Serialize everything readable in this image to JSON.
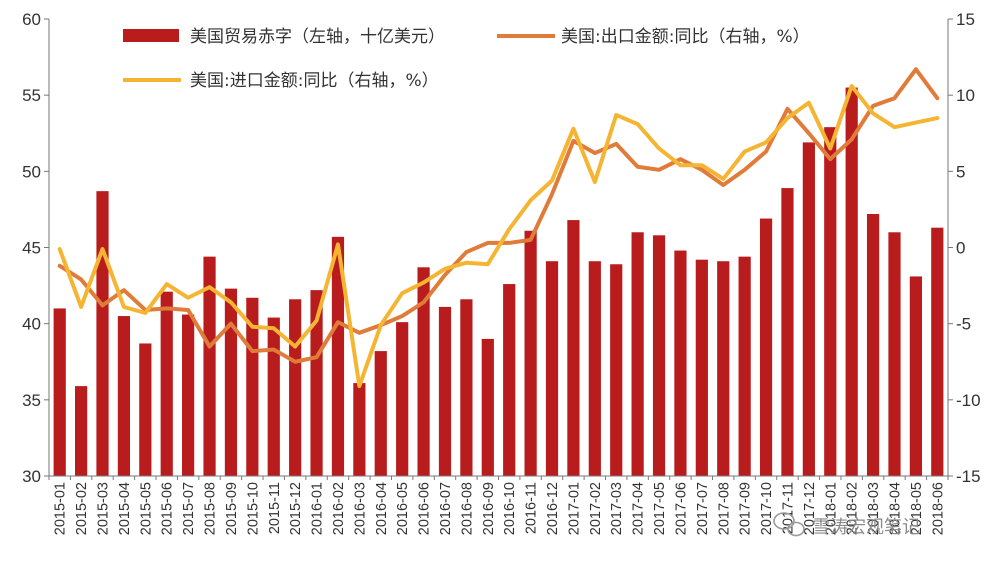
{
  "chart_data": {
    "type": "bar+line",
    "categories": [
      "2015-01",
      "2015-02",
      "2015-03",
      "2015-04",
      "2015-05",
      "2015-06",
      "2015-07",
      "2015-08",
      "2015-09",
      "2015-10",
      "2015-11",
      "2015-12",
      "2016-01",
      "2016-02",
      "2016-03",
      "2016-04",
      "2016-05",
      "2016-06",
      "2016-07",
      "2016-08",
      "2016-09",
      "2016-10",
      "2016-11",
      "2016-12",
      "2017-01",
      "2017-02",
      "2017-03",
      "2017-04",
      "2017-05",
      "2017-06",
      "2017-07",
      "2017-08",
      "2017-09",
      "2017-10",
      "2017-11",
      "2017-12",
      "2018-01",
      "2018-02",
      "2018-03",
      "2018-04",
      "2018-05",
      "2018-06"
    ],
    "y_left": {
      "min": 30,
      "max": 60,
      "step": 5,
      "ticks": [
        "30",
        "35",
        "40",
        "45",
        "50",
        "55",
        "60"
      ]
    },
    "y_right": {
      "min": -15,
      "max": 15,
      "step": 5,
      "ticks": [
        "-15",
        "-10",
        "-5",
        "0",
        "5",
        "10",
        "15"
      ]
    },
    "series": [
      {
        "name": "美国贸易赤字（左轴，十亿美元）",
        "type": "bar",
        "axis": "left",
        "color": "#b81c1c",
        "values": [
          41.0,
          35.9,
          48.7,
          40.5,
          38.7,
          42.1,
          40.6,
          44.4,
          42.3,
          41.7,
          40.4,
          41.6,
          42.2,
          45.7,
          36.1,
          38.2,
          40.1,
          43.7,
          41.1,
          41.6,
          39.0,
          42.6,
          46.1,
          44.1,
          46.8,
          44.1,
          43.9,
          46.0,
          45.8,
          44.8,
          44.2,
          44.1,
          44.4,
          46.9,
          48.9,
          51.9,
          52.9,
          55.5,
          47.2,
          46.0,
          43.1,
          46.3
        ]
      },
      {
        "name": "美国:出口金额:同比（右轴，%）",
        "type": "line",
        "axis": "right",
        "color": "#e07b3a",
        "values": [
          -1.2,
          -2.1,
          -3.8,
          -2.8,
          -4.1,
          -4.0,
          -4.1,
          -6.5,
          -5.0,
          -6.8,
          -6.7,
          -7.5,
          -7.2,
          -4.9,
          -5.6,
          -5.1,
          -4.5,
          -3.6,
          -1.8,
          -0.3,
          0.3,
          0.3,
          0.5,
          3.5,
          7.0,
          6.2,
          6.8,
          5.3,
          5.1,
          5.8,
          5.1,
          4.1,
          5.1,
          6.3,
          9.1,
          7.5,
          5.8,
          7.1,
          9.3,
          9.8,
          11.7,
          9.8
        ]
      },
      {
        "name": "美国:进口金额:同比（右轴，%）",
        "type": "line",
        "axis": "right",
        "color": "#f5b533",
        "values": [
          -0.1,
          -3.9,
          -0.1,
          -3.9,
          -4.3,
          -2.4,
          -3.3,
          -2.6,
          -3.6,
          -5.2,
          -5.3,
          -6.5,
          -4.8,
          0.2,
          -9.1,
          -5.1,
          -3.0,
          -2.3,
          -1.4,
          -1.0,
          -1.1,
          1.2,
          3.1,
          4.4,
          7.8,
          4.3,
          8.7,
          8.1,
          6.5,
          5.4,
          5.4,
          4.5,
          6.3,
          6.9,
          8.5,
          9.5,
          6.5,
          10.6,
          8.8,
          7.9,
          8.2,
          8.5
        ]
      }
    ],
    "legend": [
      {
        "label": "美国贸易赤字（左轴，十亿美元）",
        "marker": "bar",
        "color": "#b81c1c"
      },
      {
        "label": "美国:出口金额:同比（右轴，%）",
        "marker": "line",
        "color": "#e07b3a"
      },
      {
        "label": "美国:进口金额:同比（右轴，%）",
        "marker": "line",
        "color": "#f5b533"
      }
    ],
    "legend_placement": "top-center",
    "grid": false
  },
  "watermark": {
    "text": "雪涛宏观笔记",
    "icon": "wechat-icon"
  }
}
